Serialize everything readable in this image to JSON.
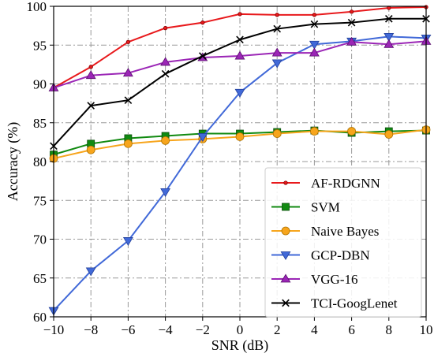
{
  "chart_data": {
    "type": "line",
    "xlabel": "SNR (dB)",
    "ylabel": "Accuracy (%)",
    "xlim": [
      -10,
      10
    ],
    "ylim": [
      60,
      100
    ],
    "x_ticks": [
      -10,
      -8,
      -6,
      -4,
      -2,
      0,
      2,
      4,
      6,
      8,
      10
    ],
    "x_tick_labels": [
      "−10",
      "−8",
      "−6",
      "−4",
      "−2",
      "0",
      "2",
      "4",
      "6",
      "8",
      "10"
    ],
    "y_ticks": [
      60,
      65,
      70,
      75,
      80,
      85,
      90,
      95,
      100
    ],
    "grid": true,
    "legend_position": "bottom-right",
    "x": [
      -10,
      -8,
      -6,
      -4,
      -2,
      0,
      2,
      4,
      6,
      8,
      10
    ],
    "series": [
      {
        "name": "AF-RDGNN",
        "color": "#e8191c",
        "marker": "dot",
        "values": [
          89.5,
          92.2,
          95.4,
          97.2,
          97.9,
          99.0,
          98.9,
          98.9,
          99.3,
          99.8,
          99.9
        ]
      },
      {
        "name": "SVM",
        "color": "#118a11",
        "marker": "square",
        "values": [
          80.9,
          82.3,
          83.0,
          83.3,
          83.6,
          83.6,
          83.8,
          84.0,
          83.7,
          83.9,
          84.0
        ]
      },
      {
        "name": "Naive Bayes",
        "color": "#f7a51c",
        "marker": "circle",
        "values": [
          80.4,
          81.5,
          82.3,
          82.7,
          82.9,
          83.2,
          83.6,
          83.9,
          83.9,
          83.5,
          84.1
        ]
      },
      {
        "name": "GCP-DBN",
        "color": "#4169d8",
        "marker": "triangle-down",
        "values": [
          60.8,
          65.9,
          69.8,
          76.1,
          83.2,
          88.9,
          92.7,
          95.1,
          95.5,
          96.1,
          95.9
        ]
      },
      {
        "name": "VGG-16",
        "color": "#9b26b6",
        "marker": "triangle-up",
        "values": [
          89.5,
          91.1,
          91.4,
          92.8,
          93.4,
          93.6,
          94.0,
          94.0,
          95.4,
          95.1,
          95.5
        ]
      },
      {
        "name": "TCI-GoogLenet",
        "color": "#000000",
        "marker": "x",
        "values": [
          82.0,
          87.2,
          87.9,
          91.3,
          93.6,
          95.7,
          97.1,
          97.7,
          97.9,
          98.4,
          98.4
        ]
      }
    ]
  }
}
